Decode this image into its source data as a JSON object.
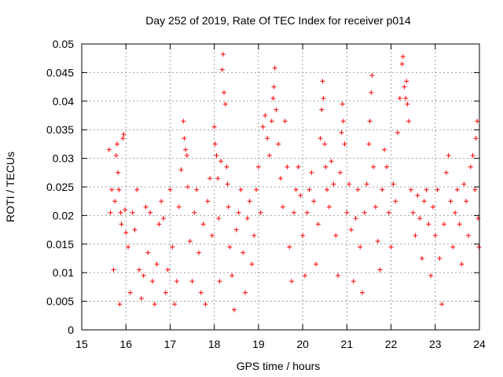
{
  "chart_data": {
    "type": "scatter",
    "title": "Day 252 of 2019, Rate Of TEC Index for receiver p014",
    "xlabel": "GPS time / hours",
    "ylabel": "ROTI / TECUs",
    "xlim": [
      15,
      24
    ],
    "ylim": [
      0,
      0.05
    ],
    "xticks": [
      15,
      16,
      17,
      18,
      19,
      20,
      21,
      22,
      23,
      24
    ],
    "yticks": [
      0,
      0.005,
      0.01,
      0.015,
      0.02,
      0.025,
      0.03,
      0.035,
      0.04,
      0.045,
      0.05
    ],
    "ytick_labels": [
      "0",
      "0.005",
      "0.01",
      "0.015",
      "0.02",
      "0.025",
      "0.03",
      "0.035",
      "0.04",
      "0.045",
      "0.05"
    ],
    "grid": true,
    "marker": "plus",
    "color": "#ff0000",
    "series": [
      {
        "name": "ROTI",
        "points": [
          [
            15.62,
            0.0315
          ],
          [
            15.65,
            0.0205
          ],
          [
            15.68,
            0.0245
          ],
          [
            15.72,
            0.0105
          ],
          [
            15.75,
            0.0225
          ],
          [
            15.78,
            0.0305
          ],
          [
            15.8,
            0.0325
          ],
          [
            15.82,
            0.0275
          ],
          [
            15.84,
            0.0245
          ],
          [
            15.86,
            0.0045
          ],
          [
            15.88,
            0.0205
          ],
          [
            15.9,
            0.0185
          ],
          [
            15.93,
            0.0335
          ],
          [
            15.95,
            0.0342
          ],
          [
            15.98,
            0.021
          ],
          [
            16.0,
            0.017
          ],
          [
            16.05,
            0.0145
          ],
          [
            16.1,
            0.0065
          ],
          [
            16.15,
            0.0205
          ],
          [
            16.2,
            0.0175
          ],
          [
            16.25,
            0.0245
          ],
          [
            16.3,
            0.0105
          ],
          [
            16.35,
            0.0055
          ],
          [
            16.4,
            0.0095
          ],
          [
            16.45,
            0.0215
          ],
          [
            16.5,
            0.0135
          ],
          [
            16.55,
            0.0205
          ],
          [
            16.6,
            0.0085
          ],
          [
            16.65,
            0.0045
          ],
          [
            16.7,
            0.0115
          ],
          [
            16.75,
            0.0185
          ],
          [
            16.8,
            0.0225
          ],
          [
            16.85,
            0.0195
          ],
          [
            16.9,
            0.0065
          ],
          [
            16.95,
            0.0105
          ],
          [
            17.0,
            0.0245
          ],
          [
            17.05,
            0.0145
          ],
          [
            17.1,
            0.0045
          ],
          [
            17.15,
            0.0085
          ],
          [
            17.2,
            0.0215
          ],
          [
            17.25,
            0.028
          ],
          [
            17.3,
            0.0365
          ],
          [
            17.32,
            0.0335
          ],
          [
            17.35,
            0.0315
          ],
          [
            17.38,
            0.0305
          ],
          [
            17.4,
            0.025
          ],
          [
            17.45,
            0.0155
          ],
          [
            17.5,
            0.0085
          ],
          [
            17.55,
            0.0205
          ],
          [
            17.6,
            0.0245
          ],
          [
            17.65,
            0.0135
          ],
          [
            17.7,
            0.0065
          ],
          [
            17.75,
            0.0185
          ],
          [
            17.8,
            0.0045
          ],
          [
            17.85,
            0.0225
          ],
          [
            17.9,
            0.0265
          ],
          [
            17.95,
            0.0165
          ],
          [
            18.0,
            0.0355
          ],
          [
            18.02,
            0.0325
          ],
          [
            18.05,
            0.0305
          ],
          [
            18.08,
            0.0265
          ],
          [
            18.1,
            0.0195
          ],
          [
            18.12,
            0.0085
          ],
          [
            18.15,
            0.0295
          ],
          [
            18.18,
            0.0455
          ],
          [
            18.2,
            0.0482
          ],
          [
            18.22,
            0.0415
          ],
          [
            18.25,
            0.0395
          ],
          [
            18.28,
            0.0285
          ],
          [
            18.3,
            0.0255
          ],
          [
            18.32,
            0.0215
          ],
          [
            18.35,
            0.0145
          ],
          [
            18.4,
            0.0095
          ],
          [
            18.45,
            0.0035
          ],
          [
            18.5,
            0.0175
          ],
          [
            18.55,
            0.0205
          ],
          [
            18.6,
            0.0245
          ],
          [
            18.65,
            0.0135
          ],
          [
            18.7,
            0.0065
          ],
          [
            18.75,
            0.0195
          ],
          [
            18.8,
            0.0225
          ],
          [
            18.85,
            0.0115
          ],
          [
            18.9,
            0.0165
          ],
          [
            18.95,
            0.0245
          ],
          [
            19.0,
            0.0285
          ],
          [
            19.05,
            0.0205
          ],
          [
            19.1,
            0.0355
          ],
          [
            19.15,
            0.0375
          ],
          [
            19.2,
            0.0335
          ],
          [
            19.25,
            0.0305
          ],
          [
            19.3,
            0.0365
          ],
          [
            19.33,
            0.0405
          ],
          [
            19.35,
            0.0425
          ],
          [
            19.37,
            0.0458
          ],
          [
            19.4,
            0.0385
          ],
          [
            19.45,
            0.0325
          ],
          [
            19.5,
            0.0265
          ],
          [
            19.55,
            0.0215
          ],
          [
            19.6,
            0.0365
          ],
          [
            19.65,
            0.0285
          ],
          [
            19.7,
            0.0145
          ],
          [
            19.75,
            0.0085
          ],
          [
            19.8,
            0.0205
          ],
          [
            19.85,
            0.0245
          ],
          [
            19.9,
            0.0285
          ],
          [
            19.95,
            0.0235
          ],
          [
            20.0,
            0.0165
          ],
          [
            20.05,
            0.0095
          ],
          [
            20.1,
            0.0205
          ],
          [
            20.15,
            0.0245
          ],
          [
            20.2,
            0.0275
          ],
          [
            20.25,
            0.0225
          ],
          [
            20.3,
            0.0115
          ],
          [
            20.35,
            0.0185
          ],
          [
            20.4,
            0.0335
          ],
          [
            20.43,
            0.0385
          ],
          [
            20.45,
            0.0435
          ],
          [
            20.47,
            0.0405
          ],
          [
            20.5,
            0.0325
          ],
          [
            20.52,
            0.0285
          ],
          [
            20.55,
            0.0245
          ],
          [
            20.6,
            0.0215
          ],
          [
            20.65,
            0.0295
          ],
          [
            20.7,
            0.0255
          ],
          [
            20.75,
            0.0165
          ],
          [
            20.8,
            0.0095
          ],
          [
            20.85,
            0.0275
          ],
          [
            20.88,
            0.0345
          ],
          [
            20.9,
            0.0395
          ],
          [
            20.92,
            0.0365
          ],
          [
            20.95,
            0.0325
          ],
          [
            21.0,
            0.0205
          ],
          [
            21.05,
            0.0255
          ],
          [
            21.1,
            0.0175
          ],
          [
            21.15,
            0.0085
          ],
          [
            21.2,
            0.0195
          ],
          [
            21.25,
            0.0245
          ],
          [
            21.3,
            0.0145
          ],
          [
            21.35,
            0.0065
          ],
          [
            21.4,
            0.0205
          ],
          [
            21.45,
            0.0255
          ],
          [
            21.5,
            0.0325
          ],
          [
            21.52,
            0.0365
          ],
          [
            21.55,
            0.0415
          ],
          [
            21.57,
            0.0445
          ],
          [
            21.6,
            0.0285
          ],
          [
            21.65,
            0.0215
          ],
          [
            21.7,
            0.0155
          ],
          [
            21.75,
            0.0105
          ],
          [
            21.8,
            0.0245
          ],
          [
            21.85,
            0.0315
          ],
          [
            21.9,
            0.0285
          ],
          [
            21.95,
            0.0205
          ],
          [
            22.0,
            0.0145
          ],
          [
            22.05,
            0.0255
          ],
          [
            22.1,
            0.0225
          ],
          [
            22.15,
            0.0345
          ],
          [
            22.2,
            0.0405
          ],
          [
            22.25,
            0.0465
          ],
          [
            22.27,
            0.0478
          ],
          [
            22.3,
            0.0425
          ],
          [
            22.33,
            0.0405
          ],
          [
            22.35,
            0.0435
          ],
          [
            22.37,
            0.0395
          ],
          [
            22.4,
            0.0365
          ],
          [
            22.45,
            0.0245
          ],
          [
            22.5,
            0.0205
          ],
          [
            22.55,
            0.0165
          ],
          [
            22.6,
            0.0235
          ],
          [
            22.65,
            0.0195
          ],
          [
            22.7,
            0.0125
          ],
          [
            22.75,
            0.0225
          ],
          [
            22.8,
            0.0245
          ],
          [
            22.85,
            0.0185
          ],
          [
            22.9,
            0.0095
          ],
          [
            22.95,
            0.0215
          ],
          [
            23.0,
            0.0165
          ],
          [
            23.05,
            0.0245
          ],
          [
            23.1,
            0.0125
          ],
          [
            23.15,
            0.0045
          ],
          [
            23.2,
            0.0185
          ],
          [
            23.25,
            0.0275
          ],
          [
            23.3,
            0.0305
          ],
          [
            23.35,
            0.0225
          ],
          [
            23.4,
            0.0145
          ],
          [
            23.45,
            0.0205
          ],
          [
            23.5,
            0.0245
          ],
          [
            23.55,
            0.0185
          ],
          [
            23.6,
            0.0115
          ],
          [
            23.65,
            0.0255
          ],
          [
            23.7,
            0.0225
          ],
          [
            23.75,
            0.0165
          ],
          [
            23.8,
            0.0285
          ],
          [
            23.85,
            0.0305
          ],
          [
            23.9,
            0.0245
          ],
          [
            23.92,
            0.0335
          ],
          [
            23.95,
            0.0365
          ],
          [
            23.97,
            0.0195
          ],
          [
            23.99,
            0.0145
          ]
        ]
      }
    ]
  }
}
